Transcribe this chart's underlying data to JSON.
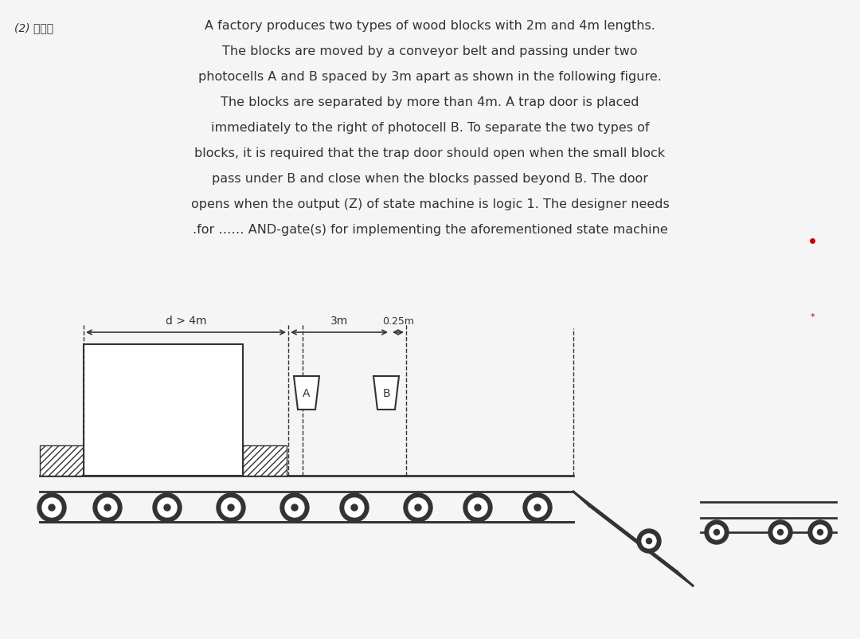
{
  "bg_color": "#f5f5f5",
  "text_color": "#1a1a1a",
  "title_lines": [
    "A factory produces two types of wood blocks with 2m and 4m lengths.",
    "The blocks are moved by a conveyor belt and passing under two",
    "photocells A and B spaced by 3m apart as shown in the following figure.",
    "The blocks are separated by more than 4m. A trap door is placed",
    "immediately to the right of photocell B. To separate the two types of",
    "blocks, it is required that the trap door should open when the small block",
    "pass under B and close when the blocks passed beyond B. The door",
    "opens when the output (Z) of state machine is logic 1. The designer needs",
    ".for …… AND-gate(s) for implementing the aforementioned state machine"
  ],
  "label_top_left": "(2) شكل",
  "dim_d_label": "d > 4m",
  "dim_3m_label": "3m",
  "dim_025_label": "0.25m",
  "photocell_A_label": "A",
  "photocell_B_label": "B",
  "red_dot_color": "#cc0000",
  "line_color": "#333333",
  "hatch_color": "#555555",
  "roller_color": "#222222",
  "roller_fill": "#ffffff"
}
